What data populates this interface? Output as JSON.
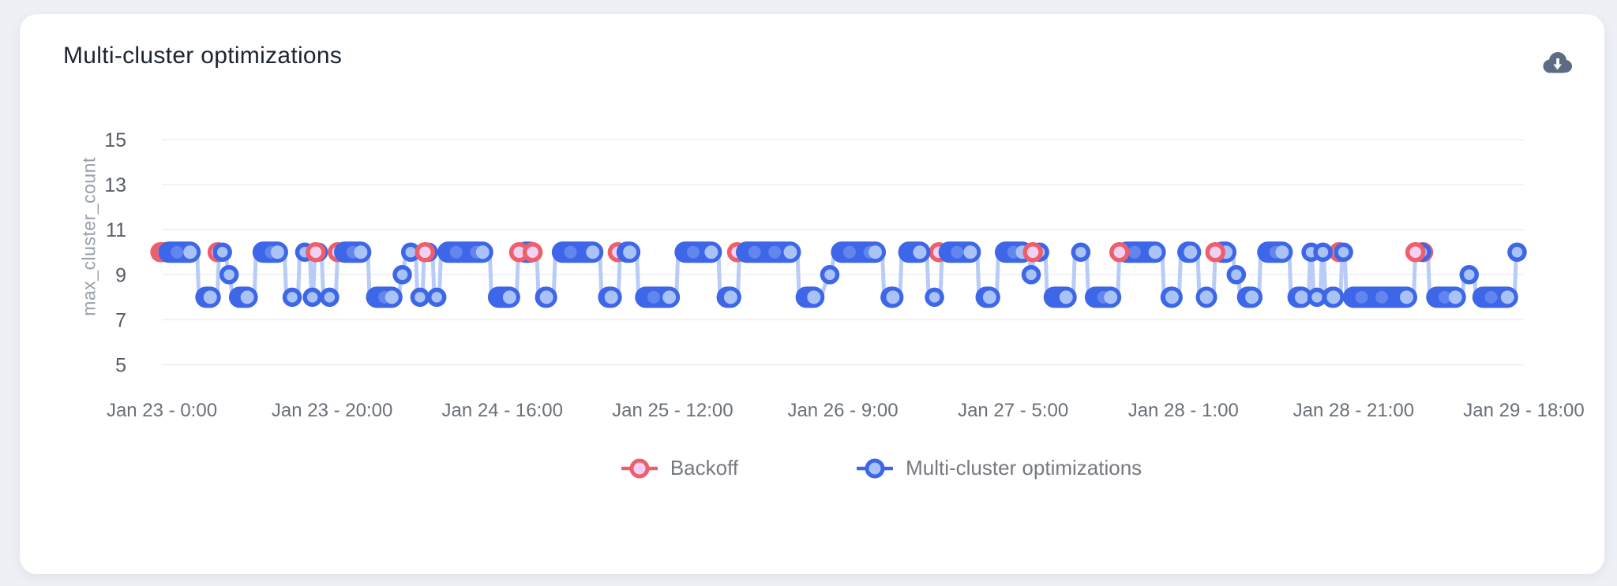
{
  "card": {
    "title": "Multi-cluster optimizations"
  },
  "toolbar": {
    "download_icon": "cloud-download-icon"
  },
  "chart_data": {
    "type": "line",
    "title": "Multi-cluster optimizations",
    "xlabel": "",
    "ylabel": "max_cluster_count",
    "ylim": [
      4,
      16
    ],
    "y_ticks": [
      15,
      13,
      11,
      9,
      7,
      5
    ],
    "x_tick_labels": [
      "Jan 23 - 0:00",
      "Jan 23 - 20:00",
      "Jan 24 - 16:00",
      "Jan 25 - 12:00",
      "Jan 26 - 9:00",
      "Jan 27 - 5:00",
      "Jan 28 - 1:00",
      "Jan 28 - 21:00",
      "Jan 29 - 18:00"
    ],
    "x_range_hours": [
      0,
      162
    ],
    "grid": "horizontal-only",
    "legend_position": "bottom",
    "series": [
      {
        "name": "Multi-cluster optimizations",
        "kind": "step-line-with-round-markers",
        "color": "#3d66e8",
        "marker_fill": "#a9c3f6",
        "inner_dot_fill": "#6285ee",
        "connector_color": "#b9ccf8",
        "segments_value_start_end_hours": [
          [
            10,
            0,
            4.2
          ],
          [
            8,
            4.4,
            6.6
          ],
          [
            10,
            6.8,
            7.6
          ],
          [
            9,
            7.9,
            8.1
          ],
          [
            8,
            8.4,
            11
          ],
          [
            10,
            11.2,
            14.6
          ],
          [
            8,
            14.8,
            16.2
          ],
          [
            10,
            16.4,
            17.6
          ],
          [
            8,
            17.8,
            18
          ],
          [
            10,
            18.2,
            19
          ],
          [
            8,
            19.2,
            20.7
          ],
          [
            10,
            20.9,
            24.5
          ],
          [
            8,
            24.7,
            28.2
          ],
          [
            9,
            28.5,
            28.7
          ],
          [
            10,
            29,
            30.2
          ],
          [
            8,
            30.4,
            31
          ],
          [
            10,
            31.2,
            32.2
          ],
          [
            8,
            32.4,
            33
          ],
          [
            10,
            33.2,
            39
          ],
          [
            8,
            39.2,
            42.2
          ],
          [
            10,
            42.4,
            44.6
          ],
          [
            8,
            44.8,
            46.6
          ],
          [
            10,
            46.8,
            52.1
          ],
          [
            8,
            52.3,
            54.3
          ],
          [
            10,
            54.5,
            56.5
          ],
          [
            8,
            56.7,
            61.2
          ],
          [
            10,
            61.4,
            66.2
          ],
          [
            8,
            66.4,
            68.5
          ],
          [
            10,
            68.7,
            75.6
          ],
          [
            8,
            75.8,
            78.4
          ],
          [
            9,
            79.3,
            79.6
          ],
          [
            10,
            80,
            85.7
          ],
          [
            8,
            85.9,
            87.8
          ],
          [
            10,
            88,
            91
          ],
          [
            8,
            91.2,
            92.6
          ],
          [
            10,
            92.8,
            97
          ],
          [
            8,
            97.2,
            99.3
          ],
          [
            10,
            99.5,
            103.2
          ],
          [
            9,
            103.3,
            103.5
          ],
          [
            10,
            103.7,
            105.1
          ],
          [
            8,
            105.3,
            108.4
          ],
          [
            10,
            108.6,
            110
          ],
          [
            8,
            110.2,
            113.7
          ],
          [
            10,
            113.9,
            119
          ],
          [
            8,
            119.2,
            121
          ],
          [
            10,
            121.2,
            123.2
          ],
          [
            8,
            123.4,
            125.1
          ],
          [
            10,
            125.3,
            127.4
          ],
          [
            9,
            127.6,
            128
          ],
          [
            8,
            128.3,
            130.5
          ],
          [
            10,
            130.7,
            134.1
          ],
          [
            8,
            134.3,
            136.4
          ],
          [
            10,
            136.6,
            136.8
          ],
          [
            8,
            137,
            137.8
          ],
          [
            10,
            138,
            138.2
          ],
          [
            8,
            138.4,
            140.2
          ],
          [
            10,
            140.4,
            140.7
          ],
          [
            8,
            140.9,
            148.9
          ],
          [
            10,
            149.1,
            150.6
          ],
          [
            8,
            150.8,
            154.7
          ],
          [
            9,
            154.9,
            156.1
          ],
          [
            8,
            156.3,
            160.9
          ],
          [
            10,
            161.1,
            161.3
          ]
        ]
      },
      {
        "name": "Backoff",
        "kind": "event-markers",
        "color": "#ef5f6b",
        "marker_fill": "#f2d2f4",
        "value": 10,
        "events": [
          {
            "t": 0.2,
            "behind": true
          },
          {
            "t": 0.6,
            "behind": true
          },
          {
            "t": 7.0,
            "behind": true
          },
          {
            "t": 18.3,
            "behind": false
          },
          {
            "t": 21.3,
            "behind": true
          },
          {
            "t": 31.3,
            "behind": false
          },
          {
            "t": 42.5,
            "behind": false
          },
          {
            "t": 44.1,
            "behind": false
          },
          {
            "t": 54.6,
            "behind": true
          },
          {
            "t": 68.8,
            "behind": true
          },
          {
            "t": 90.3,
            "behind": true
          },
          {
            "t": 92.8,
            "behind": true
          },
          {
            "t": 101.9,
            "behind": true
          },
          {
            "t": 103.6,
            "behind": false
          },
          {
            "t": 113.9,
            "behind": false
          },
          {
            "t": 125.3,
            "behind": false
          },
          {
            "t": 133.1,
            "behind": true
          },
          {
            "t": 140.4,
            "behind": true
          },
          {
            "t": 149.1,
            "behind": false
          },
          {
            "t": 150.4,
            "behind": true
          }
        ]
      }
    ]
  },
  "legend": {
    "items": [
      {
        "label": "Backoff"
      },
      {
        "label": "Multi-cluster optimizations"
      }
    ]
  }
}
